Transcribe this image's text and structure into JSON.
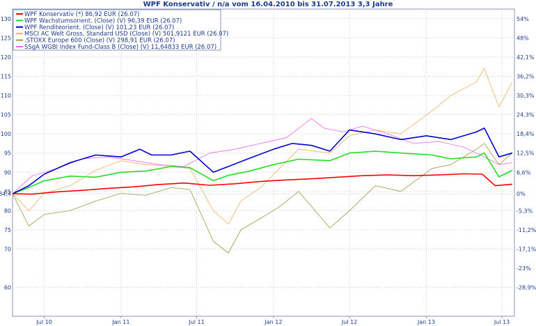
{
  "chart_data": {
    "type": "line",
    "title": "WPF Konservativ / n/a vom 16.04.2010 bis 31.07.2013 3,3 Jahre",
    "x_tick_labels": [
      "Jul 10",
      "Jan 11",
      "Jul 11",
      "Jan 12",
      "Jul 12",
      "Jan 13",
      "Jul 13"
    ],
    "x_tick_dates": [
      "2010-07-01",
      "2011-01-01",
      "2011-07-01",
      "2012-01-01",
      "2012-07-01",
      "2013-01-01",
      "2013-07-01"
    ],
    "x_range": [
      "2010-04-16",
      "2013-07-31"
    ],
    "ylim": [
      52.5,
      132.5
    ],
    "left_ticks": [
      {
        "v": 60,
        "label": "60"
      },
      {
        "v": 70,
        "label": "70"
      },
      {
        "v": 75,
        "label": "75"
      },
      {
        "v": 80,
        "label": "80"
      },
      {
        "v": 84.4,
        "label": "84,4"
      },
      {
        "v": 85,
        "label": "85"
      },
      {
        "v": 90,
        "label": "90"
      },
      {
        "v": 95,
        "label": "95"
      },
      {
        "v": 100,
        "label": "100"
      },
      {
        "v": 105,
        "label": "105"
      },
      {
        "v": 110,
        "label": "110"
      },
      {
        "v": 115,
        "label": "115"
      },
      {
        "v": 120,
        "label": "120"
      },
      {
        "v": 125,
        "label": "125"
      },
      {
        "v": 130,
        "label": "130"
      }
    ],
    "right_ticks": [
      {
        "v": 60,
        "label": "-28,9%"
      },
      {
        "v": 65,
        "label": "-23%"
      },
      {
        "v": 70,
        "label": "-17,1%"
      },
      {
        "v": 75,
        "label": "-11,2%"
      },
      {
        "v": 80,
        "label": "-5,3%"
      },
      {
        "v": 84.4,
        "label": "0%"
      },
      {
        "v": 90,
        "label": "6,6%"
      },
      {
        "v": 95,
        "label": "12,5%"
      },
      {
        "v": 100,
        "label": "18,4%"
      },
      {
        "v": 105,
        "label": "24,3%"
      },
      {
        "v": 110,
        "label": "30,3%"
      },
      {
        "v": 115,
        "label": "36,2%"
      },
      {
        "v": 120,
        "label": "42,1%"
      },
      {
        "v": 125,
        "label": "48%"
      },
      {
        "v": 130,
        "label": "54%"
      }
    ],
    "grid": true,
    "legend_position": "top-left",
    "series": [
      {
        "name": "WPF Konservativ (*) 86,92 EUR (26.07)",
        "color": "#ff0000",
        "x": [
          "2010-04-16",
          "2010-06-01",
          "2010-08-01",
          "2010-10-01",
          "2010-12-01",
          "2011-02-01",
          "2011-04-01",
          "2011-06-01",
          "2011-08-01",
          "2011-10-01",
          "2011-12-01",
          "2012-02-01",
          "2012-04-01",
          "2012-06-01",
          "2012-08-01",
          "2012-10-01",
          "2012-12-01",
          "2013-02-01",
          "2013-04-01",
          "2013-05-15",
          "2013-06-15",
          "2013-07-26"
        ],
        "values": [
          84.4,
          84.3,
          84.9,
          85.3,
          85.8,
          86.2,
          86.8,
          87.2,
          86.6,
          87.0,
          87.6,
          88.0,
          88.3,
          88.7,
          89.1,
          89.3,
          89.1,
          89.3,
          89.6,
          89.5,
          86.5,
          86.9
        ]
      },
      {
        "name": "WPF Wachstumsorient. (Close) (V) 96,39 EUR (26.07)",
        "color": "#22dd22",
        "x": [
          "2010-04-16",
          "2010-05-25",
          "2010-07-01",
          "2010-09-01",
          "2010-11-01",
          "2011-01-01",
          "2011-03-01",
          "2011-05-01",
          "2011-06-15",
          "2011-08-10",
          "2011-09-15",
          "2011-11-01",
          "2012-01-01",
          "2012-03-01",
          "2012-05-15",
          "2012-07-01",
          "2012-09-01",
          "2012-11-01",
          "2013-01-15",
          "2013-03-01",
          "2013-05-01",
          "2013-05-20",
          "2013-06-24",
          "2013-07-26"
        ],
        "values": [
          84.4,
          86.0,
          87.8,
          89.0,
          88.7,
          90.0,
          90.3,
          91.5,
          91.2,
          87.8,
          89.2,
          90.2,
          92.0,
          93.4,
          93.0,
          95.0,
          95.5,
          95.0,
          94.5,
          93.5,
          94.0,
          95.0,
          88.8,
          90.5
        ]
      },
      {
        "name": "WPF Renditeorient. (Close) (V) 101,23 EUR (26.07)",
        "color": "#0000cc",
        "x": [
          "2010-04-16",
          "2010-05-25",
          "2010-07-01",
          "2010-09-01",
          "2010-11-01",
          "2011-01-01",
          "2011-02-15",
          "2011-03-15",
          "2011-05-01",
          "2011-06-15",
          "2011-08-10",
          "2011-09-15",
          "2011-11-01",
          "2012-01-01",
          "2012-02-15",
          "2012-04-01",
          "2012-05-15",
          "2012-07-01",
          "2012-09-01",
          "2012-11-01",
          "2013-01-01",
          "2013-03-01",
          "2013-05-01",
          "2013-05-20",
          "2013-06-24",
          "2013-07-26"
        ],
        "values": [
          84.4,
          86.5,
          89.5,
          92.5,
          94.5,
          94.0,
          96.0,
          94.5,
          94.5,
          95.5,
          90.0,
          91.5,
          93.5,
          96.0,
          97.5,
          97.0,
          95.5,
          101.0,
          100.0,
          98.5,
          99.5,
          98.5,
          100.5,
          101.5,
          94.0,
          95.0
        ]
      },
      {
        "name": "MSCI AC Welt Gross, Standard USD (Close) (V) 501,9121 EUR (26.07)",
        "color": "#f0b060",
        "x": [
          "2010-04-16",
          "2010-05-25",
          "2010-07-01",
          "2010-09-01",
          "2010-11-01",
          "2011-01-01",
          "2011-03-01",
          "2011-05-01",
          "2011-06-15",
          "2011-08-10",
          "2011-09-15",
          "2011-10-15",
          "2011-12-01",
          "2012-01-15",
          "2012-03-01",
          "2012-05-15",
          "2012-07-01",
          "2012-09-01",
          "2012-11-01",
          "2013-01-15",
          "2013-03-01",
          "2013-05-01",
          "2013-05-20",
          "2013-06-24",
          "2013-07-26"
        ],
        "values": [
          84.4,
          80.0,
          84.5,
          86.5,
          90.5,
          93.0,
          92.0,
          91.5,
          91.0,
          80.0,
          76.5,
          82.5,
          86.0,
          91.0,
          96.0,
          95.0,
          99.5,
          101.0,
          100.0,
          106.0,
          110.0,
          113.5,
          117.0,
          107.0,
          113.5
        ]
      },
      {
        "name": ".STOXX Europe 600 (Close) (V) 298,91 EUR (26.07)",
        "color": "#999944",
        "x": [
          "2010-04-16",
          "2010-05-25",
          "2010-07-01",
          "2010-09-01",
          "2010-11-01",
          "2011-01-01",
          "2011-03-01",
          "2011-05-01",
          "2011-06-15",
          "2011-08-10",
          "2011-09-15",
          "2011-10-15",
          "2011-12-01",
          "2012-01-15",
          "2012-03-01",
          "2012-05-15",
          "2012-07-01",
          "2012-09-01",
          "2012-11-01",
          "2013-01-15",
          "2013-03-01",
          "2013-05-01",
          "2013-05-20",
          "2013-06-24",
          "2013-07-26"
        ],
        "values": [
          84.4,
          76.0,
          79.0,
          80.0,
          82.5,
          84.5,
          84.0,
          86.0,
          85.5,
          72.0,
          69.0,
          75.0,
          78.0,
          81.0,
          85.0,
          75.5,
          80.0,
          86.5,
          85.0,
          91.0,
          92.0,
          96.0,
          97.5,
          92.0,
          95.0
        ]
      },
      {
        "name": "SSgA WGBI Index Fund-Class B (Close) (V) 11,64833 EUR (26.07)",
        "color": "#ee66ee",
        "x": [
          "2010-04-16",
          "2010-06-01",
          "2010-08-01",
          "2010-10-01",
          "2010-12-01",
          "2011-02-01",
          "2011-04-01",
          "2011-06-01",
          "2011-08-01",
          "2011-10-01",
          "2011-12-01",
          "2012-02-01",
          "2012-04-01",
          "2012-05-01",
          "2012-06-15",
          "2012-08-01",
          "2012-10-01",
          "2012-12-01",
          "2013-02-01",
          "2013-04-01",
          "2013-05-20",
          "2013-06-24",
          "2013-07-26"
        ],
        "values": [
          84.4,
          89.0,
          91.0,
          93.5,
          94.0,
          93.0,
          92.0,
          91.5,
          95.0,
          96.0,
          97.5,
          99.0,
          104.0,
          101.5,
          100.5,
          102.0,
          100.0,
          97.5,
          98.0,
          96.5,
          94.0,
          92.0,
          92.5
        ]
      }
    ]
  }
}
